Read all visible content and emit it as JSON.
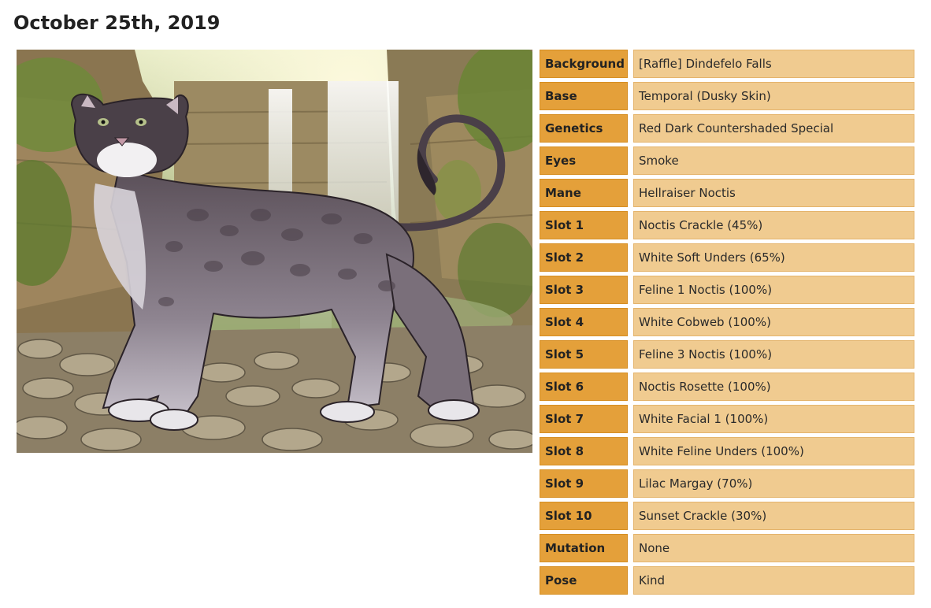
{
  "page": {
    "title": "October 25th, 2019"
  },
  "artwork": {
    "subject": "lioden-lioness-portrait"
  },
  "traits": [
    {
      "label": "Background",
      "value": "[Raffle] Dindefelo Falls"
    },
    {
      "label": "Base",
      "value": "Temporal (Dusky Skin)"
    },
    {
      "label": "Genetics",
      "value": "Red Dark Countershaded Special"
    },
    {
      "label": "Eyes",
      "value": "Smoke"
    },
    {
      "label": "Mane",
      "value": "Hellraiser Noctis"
    },
    {
      "label": "Slot 1",
      "value": "Noctis Crackle (45%)"
    },
    {
      "label": "Slot 2",
      "value": "White Soft Unders (65%)"
    },
    {
      "label": "Slot 3",
      "value": "Feline 1 Noctis (100%)"
    },
    {
      "label": "Slot 4",
      "value": "White Cobweb (100%)"
    },
    {
      "label": "Slot 5",
      "value": "Feline 3 Noctis (100%)"
    },
    {
      "label": "Slot 6",
      "value": "Noctis Rosette (100%)"
    },
    {
      "label": "Slot 7",
      "value": "White Facial 1 (100%)"
    },
    {
      "label": "Slot 8",
      "value": "White Feline Unders (100%)"
    },
    {
      "label": "Slot 9",
      "value": "Lilac Margay (70%)"
    },
    {
      "label": "Slot 10",
      "value": "Sunset Crackle (30%)"
    },
    {
      "label": "Mutation",
      "value": "None"
    },
    {
      "label": "Pose",
      "value": "Kind"
    }
  ],
  "colors": {
    "label_bg": "#e4a03a",
    "value_bg": "#f0cb90"
  }
}
